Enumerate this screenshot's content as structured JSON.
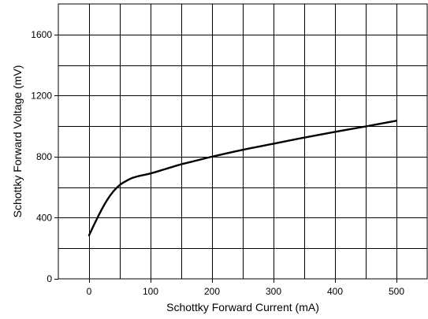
{
  "chart_data": {
    "type": "line",
    "title": "",
    "xlabel": "Schottky Forward Current (mA)",
    "ylabel": "Schottky Forward Voltage (mV)",
    "xlim": [
      -50,
      550
    ],
    "ylim": [
      0,
      1800
    ],
    "x_ticks": [
      0,
      100,
      200,
      300,
      400,
      500
    ],
    "y_ticks": [
      0,
      400,
      800,
      1200,
      1600
    ],
    "x_grid_step": 50,
    "y_grid_step": 200,
    "grid": true,
    "legend": "none",
    "line_color": "#000000",
    "series": [
      {
        "x": [
          0,
          10,
          20,
          30,
          40,
          50,
          60,
          70,
          80,
          100,
          125,
          150,
          175,
          200,
          250,
          300,
          350,
          400,
          450,
          500
        ],
        "y": [
          285,
          370,
          450,
          520,
          575,
          615,
          640,
          660,
          672,
          690,
          720,
          750,
          775,
          800,
          845,
          885,
          925,
          962,
          998,
          1035
        ]
      }
    ]
  }
}
